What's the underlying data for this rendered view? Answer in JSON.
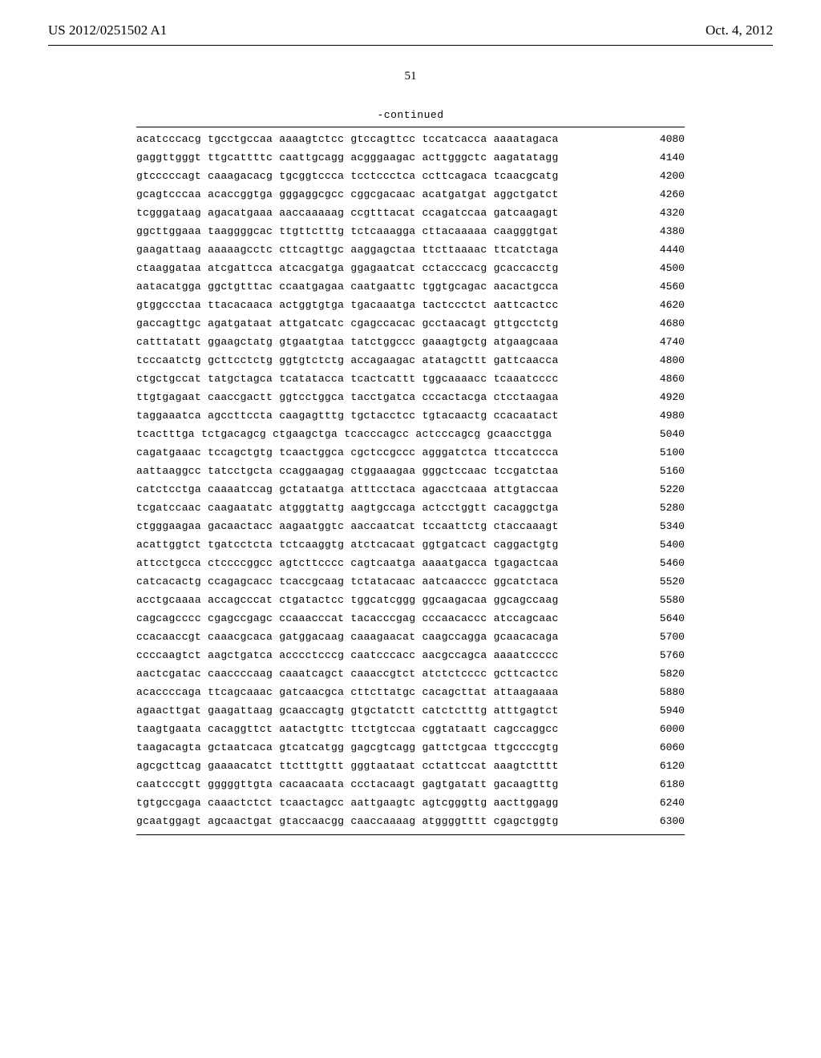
{
  "header": {
    "application_number": "US 2012/0251502 A1",
    "publication_date": "Oct. 4, 2012"
  },
  "page_number": "51",
  "continued_label": "-continued",
  "sequence": {
    "font_family": "Courier New",
    "font_size_pt": 10,
    "text_color": "#000000",
    "background_color": "#ffffff",
    "block_length": 10,
    "blocks_per_row": 6,
    "rows": [
      {
        "blocks": [
          "acatcccacg",
          "tgcctgccaa",
          "aaaagtctcc",
          "gtccagttcc",
          "tccatcacca",
          "aaaatagaca"
        ],
        "position": 4080
      },
      {
        "blocks": [
          "gaggttgggt",
          "ttgcattttc",
          "caattgcagg",
          "acgggaagac",
          "acttgggctc",
          "aagatatagg"
        ],
        "position": 4140
      },
      {
        "blocks": [
          "gtcccccagt",
          "caaagacacg",
          "tgcggtccca",
          "tcctccctca",
          "ccttcagaca",
          "tcaacgcatg"
        ],
        "position": 4200
      },
      {
        "blocks": [
          "gcagtcccaa",
          "acaccggtga",
          "gggaggcgcc",
          "cggcgacaac",
          "acatgatgat",
          "aggctgatct"
        ],
        "position": 4260
      },
      {
        "blocks": [
          "tcgggataag",
          "agacatgaaa",
          "aaccaaaaag",
          "ccgtttacat",
          "ccagatccaa",
          "gatcaagagt"
        ],
        "position": 4320
      },
      {
        "blocks": [
          "ggcttggaaa",
          "taaggggcac",
          "ttgttctttg",
          "tctcaaagga",
          "cttacaaaaa",
          "caagggtgat"
        ],
        "position": 4380
      },
      {
        "blocks": [
          "gaagattaag",
          "aaaaagcctc",
          "cttcagttgc",
          "aaggagctaa",
          "ttcttaaaac",
          "ttcatctaga"
        ],
        "position": 4440
      },
      {
        "blocks": [
          "ctaaggataa",
          "atcgattcca",
          "atcacgatga",
          "ggagaatcat",
          "cctacccacg",
          "gcaccacctg"
        ],
        "position": 4500
      },
      {
        "blocks": [
          "aatacatgga",
          "ggctgtttac",
          "ccaatgagaa",
          "caatgaattc",
          "tggtgcagac",
          "aacactgcca"
        ],
        "position": 4560
      },
      {
        "blocks": [
          "gtggccctaa",
          "ttacacaaca",
          "actggtgtga",
          "tgacaaatga",
          "tactccctct",
          "aattcactcc"
        ],
        "position": 4620
      },
      {
        "blocks": [
          "gaccagttgc",
          "agatgataat",
          "attgatcatc",
          "cgagccacac",
          "gcctaacagt",
          "gttgcctctg"
        ],
        "position": 4680
      },
      {
        "blocks": [
          "catttatatt",
          "ggaagctatg",
          "gtgaatgtaa",
          "tatctggccc",
          "gaaagtgctg",
          "atgaagcaaa"
        ],
        "position": 4740
      },
      {
        "blocks": [
          "tcccaatctg",
          "gcttcctctg",
          "ggtgtctctg",
          "accagaagac",
          "atatagcttt",
          "gattcaacca"
        ],
        "position": 4800
      },
      {
        "blocks": [
          "ctgctgccat",
          "tatgctagca",
          "tcatatacca",
          "tcactcattt",
          "tggcaaaacc",
          "tcaaatcccc"
        ],
        "position": 4860
      },
      {
        "blocks": [
          "ttgtgagaat",
          "caaccgactt",
          "ggtcctggca",
          "tacctgatca",
          "cccactacga",
          "ctcctaagaa"
        ],
        "position": 4920
      },
      {
        "blocks": [
          "taggaaatca",
          "agccttccta",
          "caagagtttg",
          "tgctacctcc",
          "tgtacaactg",
          "ccacaatact"
        ],
        "position": 4980
      },
      {
        "blocks": [
          "tcactttga",
          "tctgacagcg",
          "ctgaagctga",
          "tcacccagcc",
          "actcccagcg",
          "gcaacctgga"
        ],
        "position": 5040
      },
      {
        "blocks": [
          "cagatgaaac",
          "tccagctgtg",
          "tcaactggca",
          "cgctccgccc",
          "agggatctca",
          "ttccatccca"
        ],
        "position": 5100
      },
      {
        "blocks": [
          "aattaaggcc",
          "tatcctgcta",
          "ccaggaagag",
          "ctggaaagaa",
          "gggctccaac",
          "tccgatctaa"
        ],
        "position": 5160
      },
      {
        "blocks": [
          "catctcctga",
          "caaaatccag",
          "gctataatga",
          "atttcctaca",
          "agacctcaaa",
          "attgtaccaa"
        ],
        "position": 5220
      },
      {
        "blocks": [
          "tcgatccaac",
          "caagaatatc",
          "atgggtattg",
          "aagtgccaga",
          "actcctggtt",
          "cacaggctga"
        ],
        "position": 5280
      },
      {
        "blocks": [
          "ctgggaagaa",
          "gacaactacc",
          "aagaatggtc",
          "aaccaatcat",
          "tccaattctg",
          "ctaccaaagt"
        ],
        "position": 5340
      },
      {
        "blocks": [
          "acattggtct",
          "tgatcctcta",
          "tctcaaggtg",
          "atctcacaat",
          "ggtgatcact",
          "caggactgtg"
        ],
        "position": 5400
      },
      {
        "blocks": [
          "attcctgcca",
          "ctccccggcc",
          "agtcttcccc",
          "cagtcaatga",
          "aaaatgacca",
          "tgagactcaa"
        ],
        "position": 5460
      },
      {
        "blocks": [
          "catcacactg",
          "ccagagcacc",
          "tcaccgcaag",
          "tctatacaac",
          "aatcaacccc",
          "ggcatctaca"
        ],
        "position": 5520
      },
      {
        "blocks": [
          "acctgcaaaa",
          "accagcccat",
          "ctgatactcc",
          "tggcatcggg",
          "ggcaagacaa",
          "ggcagccaag"
        ],
        "position": 5580
      },
      {
        "blocks": [
          "cagcagcccc",
          "cgagccgagc",
          "ccaaacccat",
          "tacacccgag",
          "cccaacaccc",
          "atccagcaac"
        ],
        "position": 5640
      },
      {
        "blocks": [
          "ccacaaccgt",
          "caaacgcaca",
          "gatggacaag",
          "caaagaacat",
          "caagccagga",
          "gcaacacaga"
        ],
        "position": 5700
      },
      {
        "blocks": [
          "ccccaagtct",
          "aagctgatca",
          "acccctcccg",
          "caatcccacc",
          "aacgccagca",
          "aaaatccccc"
        ],
        "position": 5760
      },
      {
        "blocks": [
          "aactcgatac",
          "caaccccaag",
          "caaatcagct",
          "caaaccgtct",
          "atctctcccc",
          "gcttcactcc"
        ],
        "position": 5820
      },
      {
        "blocks": [
          "acaccccaga",
          "ttcagcaaac",
          "gatcaacgca",
          "cttcttatgc",
          "cacagcttat",
          "attaagaaaa"
        ],
        "position": 5880
      },
      {
        "blocks": [
          "agaacttgat",
          "gaagattaag",
          "gcaaccagtg",
          "gtgctatctt",
          "catctctttg",
          "atttgagtct"
        ],
        "position": 5940
      },
      {
        "blocks": [
          "taagtgaata",
          "cacaggttct",
          "aatactgttc",
          "ttctgtccaa",
          "cggtataatt",
          "cagccaggcc"
        ],
        "position": 6000
      },
      {
        "blocks": [
          "taagacagta",
          "gctaatcaca",
          "gtcatcatgg",
          "gagcgtcagg",
          "gattctgcaa",
          "ttgccccgtg"
        ],
        "position": 6060
      },
      {
        "blocks": [
          "agcgcttcag",
          "gaaaacatct",
          "ttctttgttt",
          "gggtaataat",
          "cctattccat",
          "aaagtctttt"
        ],
        "position": 6120
      },
      {
        "blocks": [
          "caatcccgtt",
          "gggggttgta",
          "cacaacaata",
          "ccctacaagt",
          "gagtgatatt",
          "gacaagtttg"
        ],
        "position": 6180
      },
      {
        "blocks": [
          "tgtgccgaga",
          "caaactctct",
          "tcaactagcc",
          "aattgaagtc",
          "agtcgggttg",
          "aacttggagg"
        ],
        "position": 6240
      },
      {
        "blocks": [
          "gcaatggagt",
          "agcaactgat",
          "gtaccaacgg",
          "caaccaaaag",
          "atggggtttt",
          "cgagctggtg"
        ],
        "position": 6300
      }
    ]
  }
}
